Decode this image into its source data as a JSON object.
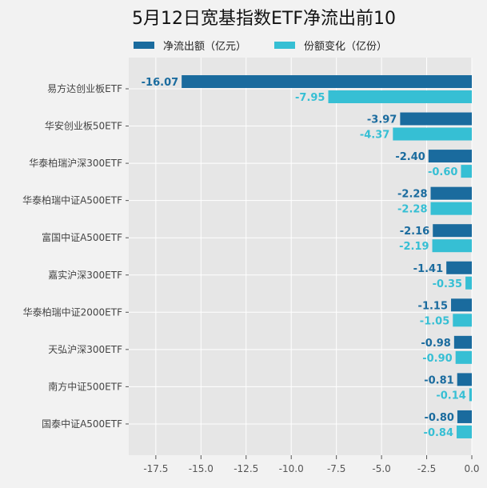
{
  "chart_data": {
    "type": "bar",
    "orientation": "horizontal",
    "title": "5月12日宽基指数ETF净流出前10",
    "categories": [
      "易方达创业板ETF",
      "华安创业板50ETF",
      "华泰柏瑞沪深300ETF",
      "华泰柏瑞中证A500ETF",
      "富国中证A500ETF",
      "嘉实沪深300ETF",
      "华泰柏瑞中证2000ETF",
      "天弘沪深300ETF",
      "南方中证500ETF",
      "国泰中证A500ETF"
    ],
    "series": [
      {
        "name": "净流出额（亿元）",
        "color": "#1a6b9e",
        "values": [
          -16.07,
          -3.97,
          -2.4,
          -2.28,
          -2.16,
          -1.41,
          -1.15,
          -0.98,
          -0.81,
          -0.8
        ],
        "labels": [
          "-16.07",
          "-3.97",
          "-2.40",
          "-2.28",
          "-2.16",
          "-1.41",
          "-1.15",
          "-0.98",
          "-0.81",
          "-0.80"
        ]
      },
      {
        "name": "份额变化（亿份）",
        "color": "#36bfd4",
        "values": [
          -7.95,
          -4.37,
          -0.6,
          -2.28,
          -2.19,
          -0.35,
          -1.05,
          -0.9,
          -0.14,
          -0.84
        ],
        "labels": [
          "-7.95",
          "-4.37",
          "-0.60",
          "-2.28",
          "-2.19",
          "-0.35",
          "-1.05",
          "-0.90",
          "-0.14",
          "-0.84"
        ]
      }
    ],
    "xlim": [
      -19,
      0
    ],
    "xticks": [
      "-17.5",
      "-15.0",
      "-12.5",
      "-10.0",
      "-7.5",
      "-5.0",
      "-2.5",
      "0.0"
    ],
    "xtick_values": [
      -17.5,
      -15,
      -12.5,
      -10,
      -7.5,
      -5,
      -2.5,
      0
    ],
    "grid": true,
    "legend": "top",
    "xlabel": "",
    "ylabel": ""
  }
}
